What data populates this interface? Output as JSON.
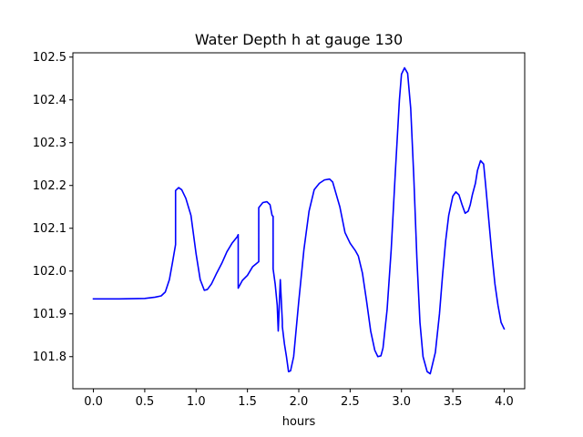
{
  "chart_data": {
    "type": "line",
    "title": "Water Depth h at gauge 130",
    "xlabel": "hours",
    "ylabel": "",
    "xlim": [
      -0.2,
      4.2
    ],
    "ylim": [
      101.725,
      102.51
    ],
    "xticks": [
      0.0,
      0.5,
      1.0,
      1.5,
      2.0,
      2.5,
      3.0,
      3.5,
      4.0
    ],
    "xtick_labels": [
      "0.0",
      "0.5",
      "1.0",
      "1.5",
      "2.0",
      "2.5",
      "3.0",
      "3.5",
      "4.0"
    ],
    "yticks": [
      101.8,
      101.9,
      102.0,
      102.1,
      102.2,
      102.3,
      102.4,
      102.5
    ],
    "ytick_labels": [
      "101.8",
      "101.9",
      "102.0",
      "102.1",
      "102.2",
      "102.3",
      "102.4",
      "102.5"
    ],
    "grid": false,
    "series": [
      {
        "color": "#0000ff",
        "x": [
          0.0,
          0.25,
          0.5,
          0.6,
          0.66,
          0.7,
          0.74,
          0.77,
          0.8,
          0.8,
          0.83,
          0.86,
          0.9,
          0.95,
          1.0,
          1.04,
          1.08,
          1.11,
          1.15,
          1.2,
          1.25,
          1.3,
          1.35,
          1.4,
          1.41,
          1.41,
          1.45,
          1.5,
          1.55,
          1.6,
          1.61,
          1.61,
          1.65,
          1.69,
          1.72,
          1.74,
          1.75,
          1.75,
          1.77,
          1.79,
          1.8,
          1.82,
          1.84,
          1.84,
          1.86,
          1.88,
          1.9,
          1.92,
          1.95,
          2.0,
          2.05,
          2.1,
          2.15,
          2.2,
          2.25,
          2.3,
          2.33,
          2.4,
          2.45,
          2.5,
          2.55,
          2.58,
          2.62,
          2.66,
          2.7,
          2.74,
          2.77,
          2.8,
          2.82,
          2.86,
          2.9,
          2.94,
          2.98,
          3.0,
          3.03,
          3.06,
          3.09,
          3.12,
          3.15,
          3.18,
          3.21,
          3.25,
          3.28,
          3.3,
          3.33,
          3.37,
          3.4,
          3.43,
          3.46,
          3.5,
          3.53,
          3.56,
          3.59,
          3.62,
          3.65,
          3.67,
          3.69,
          3.72,
          3.74,
          3.77,
          3.8,
          3.82,
          3.85,
          3.88,
          3.91,
          3.94,
          3.97,
          4.0
        ],
        "values": [
          101.935,
          101.935,
          101.936,
          101.939,
          101.942,
          101.951,
          101.98,
          102.02,
          102.062,
          102.188,
          102.195,
          102.19,
          102.17,
          102.13,
          102.04,
          101.98,
          101.955,
          101.957,
          101.97,
          101.995,
          102.018,
          102.045,
          102.065,
          102.08,
          102.085,
          101.96,
          101.978,
          101.99,
          102.01,
          102.02,
          102.022,
          102.148,
          102.16,
          102.162,
          102.155,
          102.13,
          102.128,
          102.005,
          101.97,
          101.92,
          101.86,
          101.98,
          101.88,
          101.87,
          101.83,
          101.8,
          101.765,
          101.767,
          101.8,
          101.93,
          102.05,
          102.14,
          102.19,
          102.205,
          102.213,
          102.215,
          102.208,
          102.15,
          102.09,
          102.065,
          102.048,
          102.035,
          101.995,
          101.93,
          101.86,
          101.815,
          101.8,
          101.802,
          101.82,
          101.91,
          102.05,
          102.23,
          102.4,
          102.46,
          102.475,
          102.462,
          102.38,
          102.22,
          102.03,
          101.88,
          101.8,
          101.765,
          101.76,
          101.78,
          101.81,
          101.9,
          101.99,
          102.07,
          102.13,
          102.175,
          102.185,
          102.178,
          102.155,
          102.135,
          102.14,
          102.155,
          102.178,
          102.205,
          102.235,
          102.258,
          102.25,
          102.2,
          102.12,
          102.04,
          101.97,
          101.92,
          101.88,
          101.865
        ]
      }
    ]
  }
}
